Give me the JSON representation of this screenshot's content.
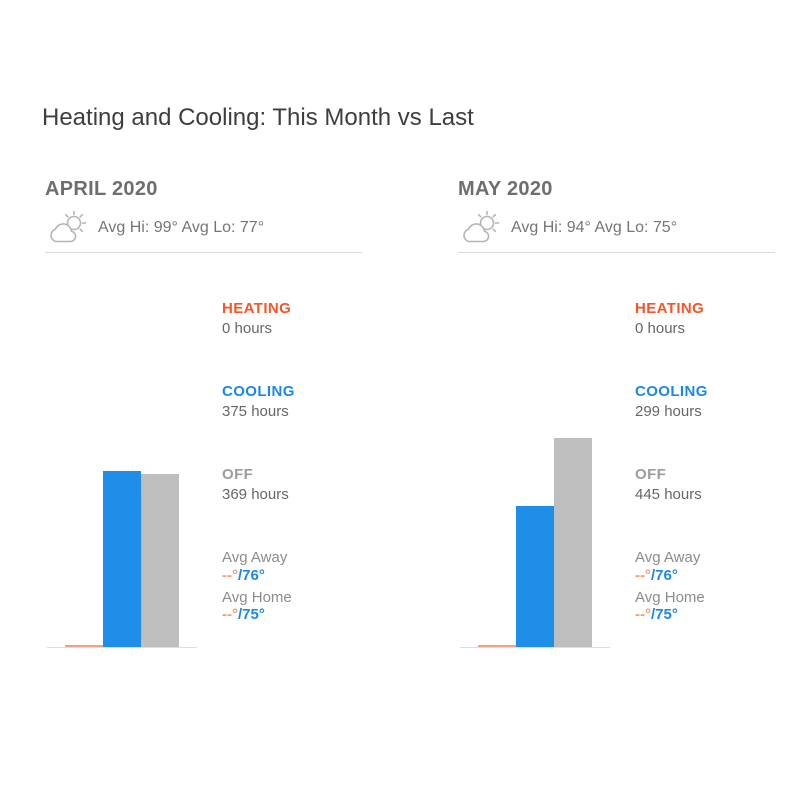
{
  "title": "Heating and Cooling: This Month vs Last",
  "colors": {
    "heating_text": "#f4562a",
    "cooling_text": "#1b87e6",
    "off_text": "#9c9c9c",
    "hours_text": "#666666",
    "bar_heating": "#f0a183",
    "bar_cooling": "#1e8ee8",
    "bar_off": "#bfbebe"
  },
  "months": [
    {
      "name": "APRIL 2020",
      "weather": "Avg Hi: 99° Avg Lo: 77°",
      "heating_label": "HEATING",
      "heating_hours": "0 hours",
      "cooling_label": "COOLING",
      "cooling_hours": "375 hours",
      "off_label": "OFF",
      "off_hours": "369 hours",
      "avg_away_label": "Avg Away",
      "avg_away_heat": "--°",
      "avg_away_cool": "/76°",
      "avg_home_label": "Avg Home",
      "avg_home_heat": "--°",
      "avg_home_cool": "/75°"
    },
    {
      "name": "MAY 2020",
      "weather": "Avg Hi: 94° Avg Lo: 75°",
      "heating_label": "HEATING",
      "heating_hours": "0 hours",
      "cooling_label": "COOLING",
      "cooling_hours": "299 hours",
      "off_label": "OFF",
      "off_hours": "445 hours",
      "avg_away_label": "Avg Away",
      "avg_away_heat": "--°",
      "avg_away_cool": "/76°",
      "avg_home_label": "Avg Home",
      "avg_home_heat": "--°",
      "avg_home_cool": "/75°"
    }
  ],
  "chart_data": [
    {
      "type": "bar",
      "title": "APRIL 2020",
      "subtitle": "Avg Hi: 99° Avg Lo: 77°",
      "categories": [
        "Heating",
        "Cooling",
        "Off"
      ],
      "values": [
        0,
        375,
        369
      ],
      "unit": "hours",
      "legend": [
        "HEATING 0 hours",
        "COOLING 375 hours",
        "OFF 369 hours"
      ],
      "avg_away": "--°/76°",
      "avg_home": "--°/75°",
      "axes": "none",
      "grid": false
    },
    {
      "type": "bar",
      "title": "MAY 2020",
      "subtitle": "Avg Hi: 94° Avg Lo: 75°",
      "categories": [
        "Heating",
        "Cooling",
        "Off"
      ],
      "values": [
        0,
        299,
        445
      ],
      "unit": "hours",
      "legend": [
        "HEATING 0 hours",
        "COOLING 299 hours",
        "OFF 445 hours"
      ],
      "avg_away": "--°/76°",
      "avg_home": "--°/75°",
      "axes": "none",
      "grid": false
    }
  ]
}
